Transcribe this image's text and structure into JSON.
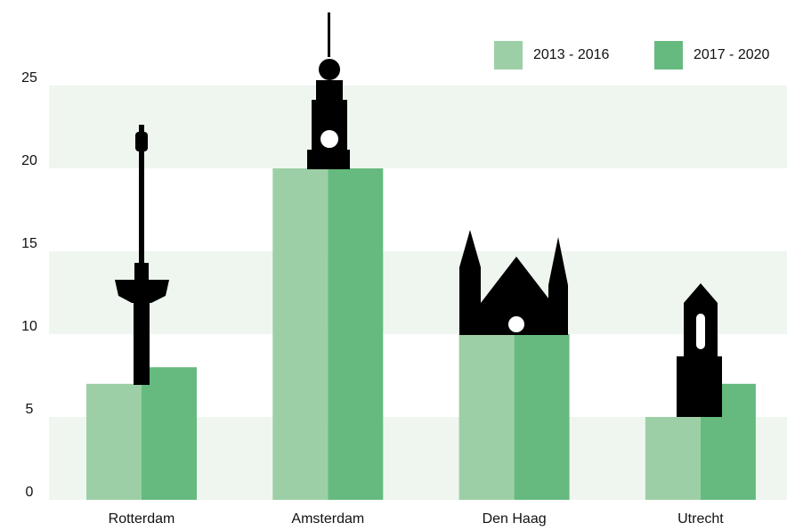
{
  "chart_data": {
    "type": "bar",
    "categories": [
      "Rotterdam",
      "Amsterdam",
      "Den Haag",
      "Utrecht"
    ],
    "series": [
      {
        "name": "2013 - 2016",
        "color": "#9dcfa6",
        "values": [
          7,
          20,
          10,
          5
        ]
      },
      {
        "name": "2017 - 2020",
        "color": "#66ba7f",
        "values": [
          8,
          20,
          10,
          7
        ]
      }
    ],
    "ylim": [
      0,
      25
    ],
    "yticks": [
      0,
      5,
      10,
      15,
      20,
      25
    ],
    "grid": true,
    "legend": "top-right"
  }
}
